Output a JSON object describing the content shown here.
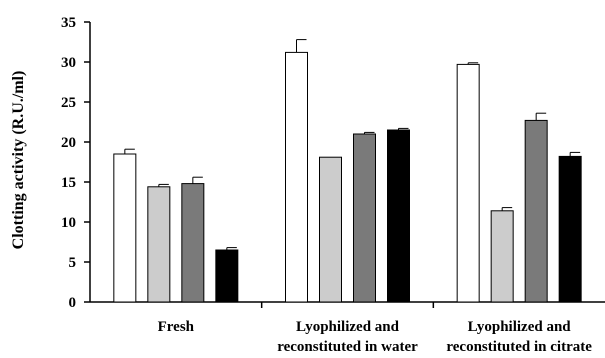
{
  "chart_data": {
    "type": "bar",
    "title": "",
    "xlabel": "",
    "ylabel": "Clotting activity (R.U./ml)",
    "ylim": [
      0,
      35
    ],
    "yticks": [
      0,
      5,
      10,
      15,
      20,
      25,
      30,
      35
    ],
    "grid": false,
    "categories": [
      [
        "Fresh"
      ],
      [
        "Lyophilized and",
        "reconstituted in water"
      ],
      [
        "Lyophilized and",
        "reconstituted in citrate"
      ]
    ],
    "series": [
      {
        "color": "#ffffff",
        "values": [
          18.5,
          31.2,
          29.7
        ],
        "errors": [
          0.6,
          1.6,
          0.2
        ]
      },
      {
        "color": "#cccccc",
        "values": [
          14.4,
          18.1,
          11.4
        ],
        "errors": [
          0.3,
          0.0,
          0.4
        ]
      },
      {
        "color": "#7a7a7a",
        "values": [
          14.8,
          21.0,
          22.7
        ],
        "errors": [
          0.8,
          0.2,
          0.9
        ]
      },
      {
        "color": "#000000",
        "values": [
          6.5,
          21.5,
          18.2
        ],
        "errors": [
          0.3,
          0.2,
          0.5
        ]
      }
    ]
  }
}
